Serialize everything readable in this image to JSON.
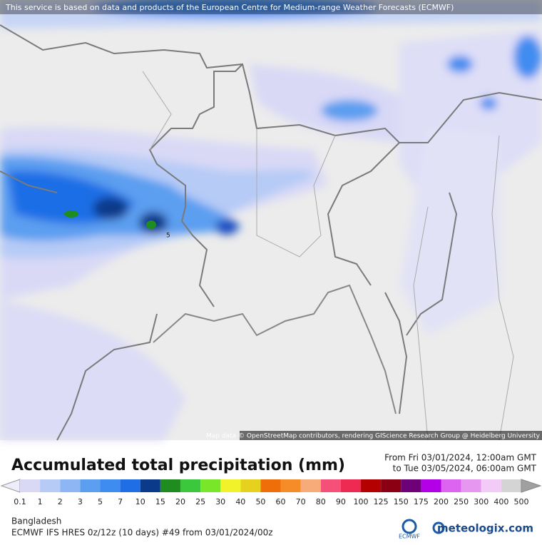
{
  "map": {
    "attribution_top": "This service is based on data and products of the European Centre for Medium-range Weather Forecasts (ECMWF)",
    "attribution_bottom": "Map data © OpenStreetMap contributors, rendering GIScience Research Group @ Heidelberg University",
    "contour_label": "5"
  },
  "legend": {
    "title": "Accumulated total precipitation (mm)",
    "period_from": "From Fri 03/01/2024, 12:00am GMT",
    "period_to": "to Tue 03/05/2024, 06:00am GMT",
    "labels": [
      0.1,
      1,
      2,
      3,
      5,
      7,
      10,
      15,
      20,
      25,
      30,
      40,
      50,
      60,
      70,
      80,
      90,
      100,
      125,
      150,
      175,
      200,
      250,
      300,
      400,
      500
    ],
    "colors": [
      "#d9d9f6",
      "#b6cbf6",
      "#8fb6f4",
      "#5c9ef0",
      "#3f8cf0",
      "#1f6ee6",
      "#0b3a8a",
      "#1e8c1e",
      "#3cc83c",
      "#7ae62a",
      "#f2f22a",
      "#e6d21e",
      "#f06e0a",
      "#f58c28",
      "#f6ab78",
      "#f55078",
      "#ef2a52",
      "#b40000",
      "#8c0014",
      "#6e0078",
      "#b400e6",
      "#dc64f0",
      "#e698f0",
      "#f2ccf6",
      "#d4d4d4"
    ],
    "under_color": "#eeeefb",
    "over_color": "#a0a0a0"
  },
  "footer": {
    "region": "Bangladesh",
    "model": "ECMWF IFS HRES 0z/12z (10 days) #49 from  03/01/2024/00z",
    "logo_left": "ECMWF",
    "logo_right": "meteologix.com"
  }
}
